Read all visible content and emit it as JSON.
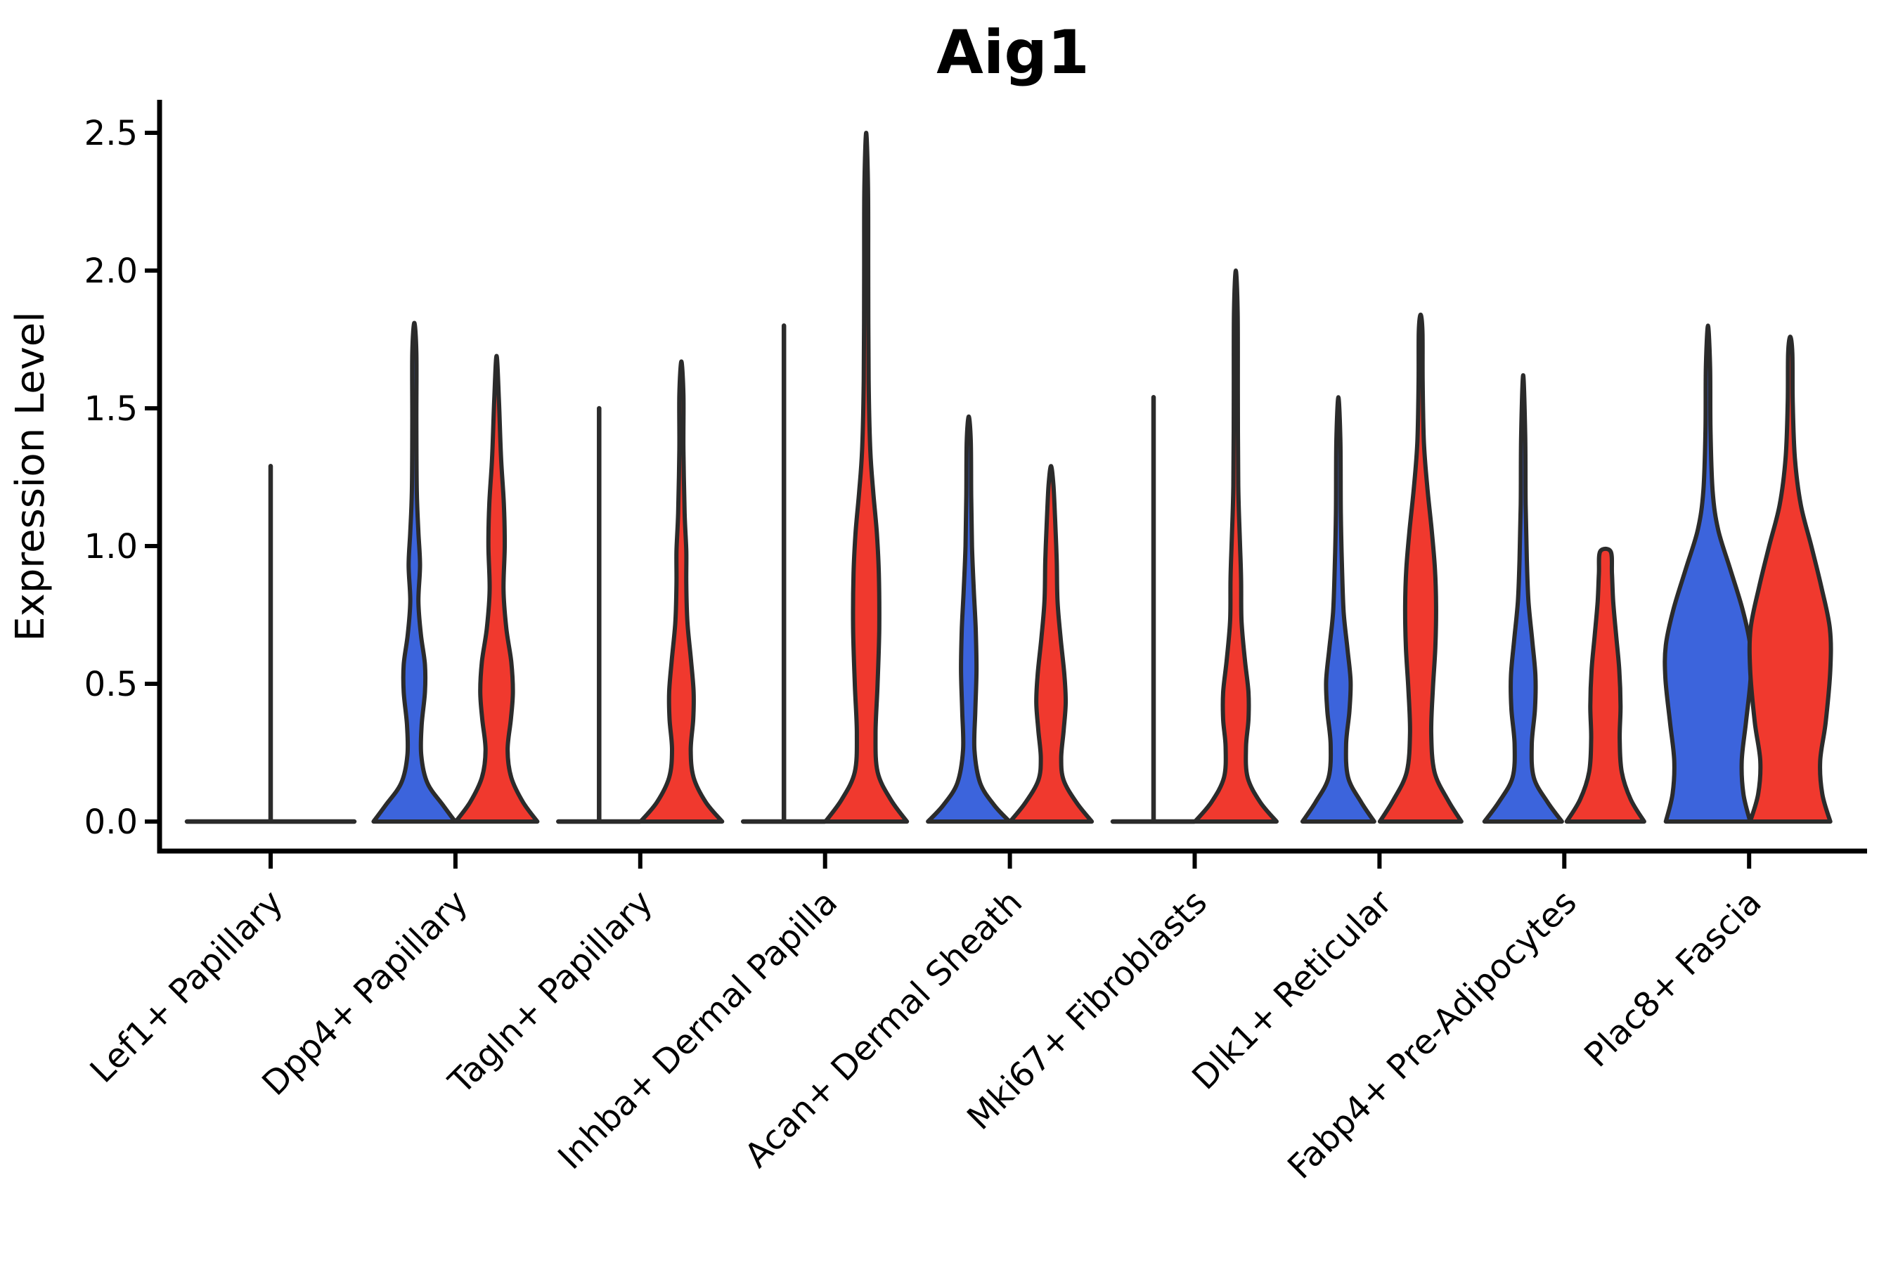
{
  "chart_data": {
    "type": "violin",
    "title": "Aig1",
    "xlabel": "",
    "ylabel": "Expression Level",
    "yticks": [
      "0.0",
      "0.5",
      "1.0",
      "1.5",
      "2.0",
      "2.5"
    ],
    "ytick_values": [
      0.0,
      0.5,
      1.0,
      1.5,
      2.0,
      2.5
    ],
    "ylim": [
      -0.11,
      2.62
    ],
    "legend_position": "none",
    "grid": false,
    "categories": [
      "Lef1+ Papillary",
      "Dpp4+ Papillary",
      "Tagln+ Papillary",
      "Inhba+ Dermal Papilla",
      "Acan+ Dermal Sheath",
      "Mki67+ Fibroblasts",
      "Dlk1+ Reticular",
      "Fabp4+ Pre-Adipocytes",
      "Plac8+ Fascia"
    ],
    "groups": [
      {
        "id": "blue",
        "color": "#3C64DC"
      },
      {
        "id": "red",
        "color": "#F0392E"
      }
    ],
    "outline_color": "#2B2B2B",
    "axis_color": "#000000",
    "violins": [
      {
        "category": "Lef1+ Papillary",
        "group": "single",
        "kind": "flat_spike",
        "offset": 0,
        "hw": 119,
        "max": 1.29
      },
      {
        "category": "Dpp4+ Papillary",
        "group": "blue",
        "kind": "violin",
        "offset": -58.5,
        "hw": 58,
        "max": 1.81,
        "profile": [
          [
            0,
            1.0
          ],
          [
            0.06,
            0.7
          ],
          [
            0.14,
            0.32
          ],
          [
            0.24,
            0.17
          ],
          [
            0.35,
            0.18
          ],
          [
            0.47,
            0.26
          ],
          [
            0.57,
            0.26
          ],
          [
            0.68,
            0.16
          ],
          [
            0.8,
            0.1
          ],
          [
            0.93,
            0.14
          ],
          [
            1.05,
            0.1
          ],
          [
            1.2,
            0.06
          ],
          [
            1.45,
            0.05
          ],
          [
            1.7,
            0.05
          ],
          [
            1.81,
            0.0
          ]
        ]
      },
      {
        "category": "Dpp4+ Papillary",
        "group": "red",
        "kind": "violin",
        "offset": 58.5,
        "hw": 58,
        "max": 1.69,
        "profile": [
          [
            0,
            1.0
          ],
          [
            0.07,
            0.65
          ],
          [
            0.16,
            0.36
          ],
          [
            0.26,
            0.27
          ],
          [
            0.37,
            0.35
          ],
          [
            0.47,
            0.4
          ],
          [
            0.58,
            0.36
          ],
          [
            0.7,
            0.24
          ],
          [
            0.84,
            0.17
          ],
          [
            1.0,
            0.2
          ],
          [
            1.15,
            0.18
          ],
          [
            1.32,
            0.11
          ],
          [
            1.52,
            0.06
          ],
          [
            1.69,
            0.0
          ]
        ]
      },
      {
        "category": "Tagln+ Papillary",
        "group": "blue",
        "kind": "flat_spike",
        "offset": -58.5,
        "hw": 58,
        "max": 1.5
      },
      {
        "category": "Tagln+ Papillary",
        "group": "red",
        "kind": "violin",
        "offset": 58.5,
        "hw": 58,
        "max": 1.67,
        "profile": [
          [
            0,
            1.0
          ],
          [
            0.07,
            0.6
          ],
          [
            0.16,
            0.3
          ],
          [
            0.26,
            0.23
          ],
          [
            0.37,
            0.29
          ],
          [
            0.47,
            0.3
          ],
          [
            0.58,
            0.24
          ],
          [
            0.72,
            0.15
          ],
          [
            0.86,
            0.12
          ],
          [
            0.98,
            0.12
          ],
          [
            1.12,
            0.08
          ],
          [
            1.35,
            0.05
          ],
          [
            1.55,
            0.05
          ],
          [
            1.67,
            0.0
          ]
        ]
      },
      {
        "category": "Inhba+ Dermal Papilla",
        "group": "blue",
        "kind": "flat_spike",
        "offset": -58.5,
        "hw": 58,
        "max": 1.8
      },
      {
        "category": "Inhba+ Dermal Papilla",
        "group": "red",
        "kind": "violin",
        "offset": 58.5,
        "hw": 58,
        "max": 2.5,
        "profile": [
          [
            0,
            1.0
          ],
          [
            0.08,
            0.6
          ],
          [
            0.18,
            0.28
          ],
          [
            0.32,
            0.23
          ],
          [
            0.5,
            0.28
          ],
          [
            0.7,
            0.32
          ],
          [
            0.9,
            0.31
          ],
          [
            1.05,
            0.26
          ],
          [
            1.2,
            0.17
          ],
          [
            1.35,
            0.1
          ],
          [
            1.6,
            0.06
          ],
          [
            2.0,
            0.05
          ],
          [
            2.3,
            0.045
          ],
          [
            2.5,
            0.0
          ]
        ]
      },
      {
        "category": "Acan+ Dermal Sheath",
        "group": "blue",
        "kind": "violin",
        "offset": -58.5,
        "hw": 58,
        "max": 1.47,
        "profile": [
          [
            0,
            1.0
          ],
          [
            0.06,
            0.62
          ],
          [
            0.14,
            0.28
          ],
          [
            0.26,
            0.14
          ],
          [
            0.4,
            0.16
          ],
          [
            0.55,
            0.19
          ],
          [
            0.7,
            0.17
          ],
          [
            0.85,
            0.12
          ],
          [
            1.0,
            0.08
          ],
          [
            1.18,
            0.06
          ],
          [
            1.38,
            0.05
          ],
          [
            1.47,
            0.0
          ]
        ]
      },
      {
        "category": "Acan+ Dermal Sheath",
        "group": "red",
        "kind": "violin",
        "offset": 58.5,
        "hw": 58,
        "max": 1.29,
        "profile": [
          [
            0,
            1.0
          ],
          [
            0.07,
            0.62
          ],
          [
            0.15,
            0.31
          ],
          [
            0.23,
            0.25
          ],
          [
            0.33,
            0.31
          ],
          [
            0.43,
            0.36
          ],
          [
            0.53,
            0.33
          ],
          [
            0.66,
            0.24
          ],
          [
            0.8,
            0.16
          ],
          [
            0.95,
            0.14
          ],
          [
            1.1,
            0.1
          ],
          [
            1.22,
            0.06
          ],
          [
            1.29,
            0.0
          ]
        ]
      },
      {
        "category": "Mki67+ Fibroblasts",
        "group": "blue",
        "kind": "flat_spike",
        "offset": -58.5,
        "hw": 58,
        "max": 1.54
      },
      {
        "category": "Mki67+ Fibroblasts",
        "group": "red",
        "kind": "violin",
        "offset": 58.5,
        "hw": 58,
        "max": 2.0,
        "profile": [
          [
            0,
            1.0
          ],
          [
            0.07,
            0.6
          ],
          [
            0.16,
            0.29
          ],
          [
            0.27,
            0.25
          ],
          [
            0.37,
            0.31
          ],
          [
            0.47,
            0.31
          ],
          [
            0.59,
            0.22
          ],
          [
            0.73,
            0.14
          ],
          [
            0.88,
            0.13
          ],
          [
            1.02,
            0.1
          ],
          [
            1.22,
            0.06
          ],
          [
            1.55,
            0.05
          ],
          [
            1.85,
            0.045
          ],
          [
            2.0,
            0.0
          ]
        ]
      },
      {
        "category": "Dlk1+ Reticular",
        "group": "blue",
        "kind": "violin",
        "offset": -58.5,
        "hw": 58,
        "max": 1.54,
        "profile": [
          [
            0,
            0.88
          ],
          [
            0.07,
            0.56
          ],
          [
            0.16,
            0.24
          ],
          [
            0.28,
            0.19
          ],
          [
            0.4,
            0.27
          ],
          [
            0.51,
            0.3
          ],
          [
            0.63,
            0.22
          ],
          [
            0.76,
            0.13
          ],
          [
            0.92,
            0.09
          ],
          [
            1.12,
            0.06
          ],
          [
            1.38,
            0.05
          ],
          [
            1.54,
            0.0
          ]
        ]
      },
      {
        "category": "Dlk1+ Reticular",
        "group": "red",
        "kind": "violin",
        "offset": 58.5,
        "hw": 58,
        "max": 1.84,
        "profile": [
          [
            0,
            1.0
          ],
          [
            0.08,
            0.66
          ],
          [
            0.18,
            0.34
          ],
          [
            0.32,
            0.26
          ],
          [
            0.48,
            0.3
          ],
          [
            0.63,
            0.36
          ],
          [
            0.78,
            0.38
          ],
          [
            0.92,
            0.35
          ],
          [
            1.06,
            0.27
          ],
          [
            1.22,
            0.16
          ],
          [
            1.38,
            0.08
          ],
          [
            1.6,
            0.05
          ],
          [
            1.78,
            0.045
          ],
          [
            1.84,
            0.0
          ]
        ]
      },
      {
        "category": "Fabp4+ Pre-Adipocytes",
        "group": "blue",
        "kind": "violin",
        "offset": -58.5,
        "hw": 58,
        "max": 1.62,
        "profile": [
          [
            0,
            0.95
          ],
          [
            0.07,
            0.6
          ],
          [
            0.16,
            0.26
          ],
          [
            0.28,
            0.21
          ],
          [
            0.41,
            0.29
          ],
          [
            0.53,
            0.3
          ],
          [
            0.66,
            0.22
          ],
          [
            0.8,
            0.13
          ],
          [
            0.95,
            0.09
          ],
          [
            1.15,
            0.06
          ],
          [
            1.4,
            0.05
          ],
          [
            1.62,
            0.0
          ]
        ]
      },
      {
        "category": "Fabp4+ Pre-Adipocytes",
        "group": "red",
        "kind": "violin",
        "flat_top": true,
        "offset": 58.5,
        "hw": 58,
        "max": 0.98,
        "profile": [
          [
            0,
            0.95
          ],
          [
            0.08,
            0.62
          ],
          [
            0.18,
            0.4
          ],
          [
            0.3,
            0.35
          ],
          [
            0.42,
            0.37
          ],
          [
            0.55,
            0.34
          ],
          [
            0.68,
            0.26
          ],
          [
            0.8,
            0.19
          ],
          [
            0.9,
            0.16
          ],
          [
            0.98,
            0.13
          ]
        ]
      },
      {
        "category": "Plac8+ Fascia",
        "group": "blue",
        "kind": "violin",
        "offset": -58.5,
        "hw": 60,
        "max": 1.8,
        "profile": [
          [
            0,
            1.0
          ],
          [
            0.1,
            0.84
          ],
          [
            0.22,
            0.8
          ],
          [
            0.36,
            0.9
          ],
          [
            0.52,
            1.01
          ],
          [
            0.64,
            1.0
          ],
          [
            0.77,
            0.82
          ],
          [
            0.92,
            0.52
          ],
          [
            1.06,
            0.24
          ],
          [
            1.2,
            0.11
          ],
          [
            1.42,
            0.06
          ],
          [
            1.65,
            0.05
          ],
          [
            1.8,
            0.0
          ]
        ]
      },
      {
        "category": "Plac8+ Fascia",
        "group": "red",
        "kind": "violin",
        "offset": 58.5,
        "hw": 60,
        "max": 1.76,
        "profile": [
          [
            0,
            0.95
          ],
          [
            0.1,
            0.76
          ],
          [
            0.22,
            0.71
          ],
          [
            0.36,
            0.84
          ],
          [
            0.55,
            0.95
          ],
          [
            0.7,
            0.94
          ],
          [
            0.85,
            0.74
          ],
          [
            1.0,
            0.5
          ],
          [
            1.15,
            0.25
          ],
          [
            1.32,
            0.11
          ],
          [
            1.52,
            0.06
          ],
          [
            1.7,
            0.05
          ],
          [
            1.76,
            0.0
          ]
        ]
      }
    ]
  }
}
